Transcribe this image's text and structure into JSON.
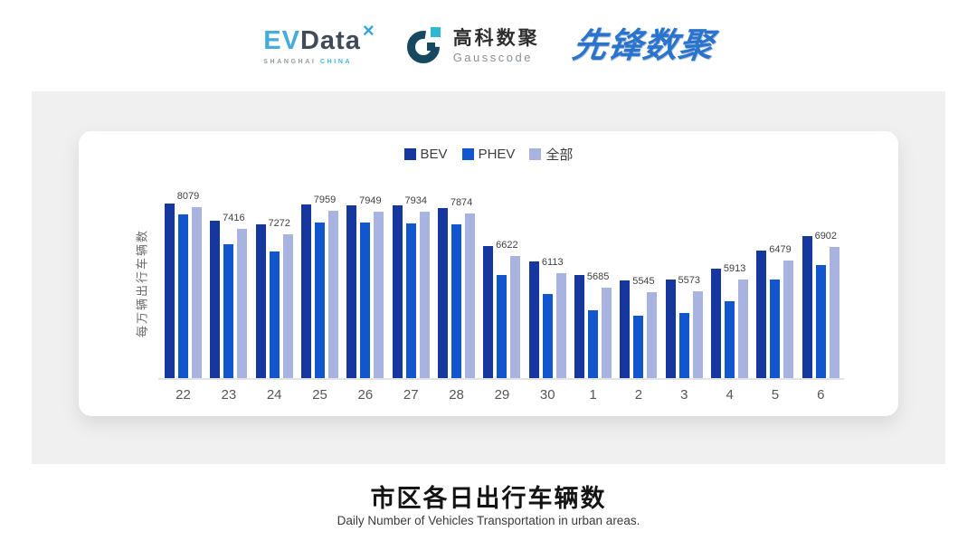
{
  "header": {
    "logos": {
      "evdata": {
        "ev": "EV",
        "data": "Data",
        "mark": "×",
        "sub_left": "SHANGHAI",
        "sub_right": "CHINA",
        "blue": "#45abdb",
        "dark": "#414b57"
      },
      "gausscode": {
        "cn": "高科数聚",
        "en": "Gausscode",
        "navy": "#16495f",
        "teal": "#2fb9d0"
      },
      "pioneer": {
        "text": "先锋数聚",
        "blue": "#2b74cb"
      }
    }
  },
  "chart": {
    "legend": [
      {
        "label": "BEV",
        "color": "#16389e"
      },
      {
        "label": "PHEV",
        "color": "#1156cd"
      },
      {
        "label": "全部",
        "color": "#a9b3e0"
      }
    ],
    "y_axis_label": "每万辆出行车辆数"
  },
  "chart_data": {
    "type": "bar",
    "title": "市区各日出行车辆数",
    "subtitle": "Daily Number of Vehicles Transportation in urban areas.",
    "categories": [
      "22",
      "23",
      "24",
      "25",
      "26",
      "27",
      "28",
      "29",
      "30",
      "1",
      "2",
      "3",
      "4",
      "5",
      "6"
    ],
    "series": [
      {
        "name": "BEV",
        "color": "#16389e",
        "values": [
          8190,
          7660,
          7550,
          8145,
          8120,
          8115,
          8050,
          6915,
          6460,
          6050,
          5890,
          5935,
          6235,
          6795,
          7205
        ]
      },
      {
        "name": "PHEV",
        "color": "#1156cd",
        "values": [
          7845,
          6980,
          6760,
          7625,
          7610,
          7600,
          7550,
          6070,
          5505,
          5020,
          4840,
          4930,
          5295,
          5915,
          6345
        ]
      },
      {
        "name": "全部",
        "color": "#a9b3e0",
        "values": [
          8079,
          7416,
          7272,
          7959,
          7949,
          7934,
          7874,
          6622,
          6113,
          5685,
          5545,
          5573,
          5913,
          6479,
          6902
        ]
      }
    ],
    "data_labels_series": "全部",
    "xlabel": "",
    "ylabel": "每万辆出行车辆数",
    "ylim": [
      3000,
      8500
    ],
    "grid": false,
    "legend_position": "top-center"
  },
  "footer": {
    "title": "市区各日出行车辆数",
    "subtitle": "Daily Number of Vehicles Transportation in urban areas."
  }
}
